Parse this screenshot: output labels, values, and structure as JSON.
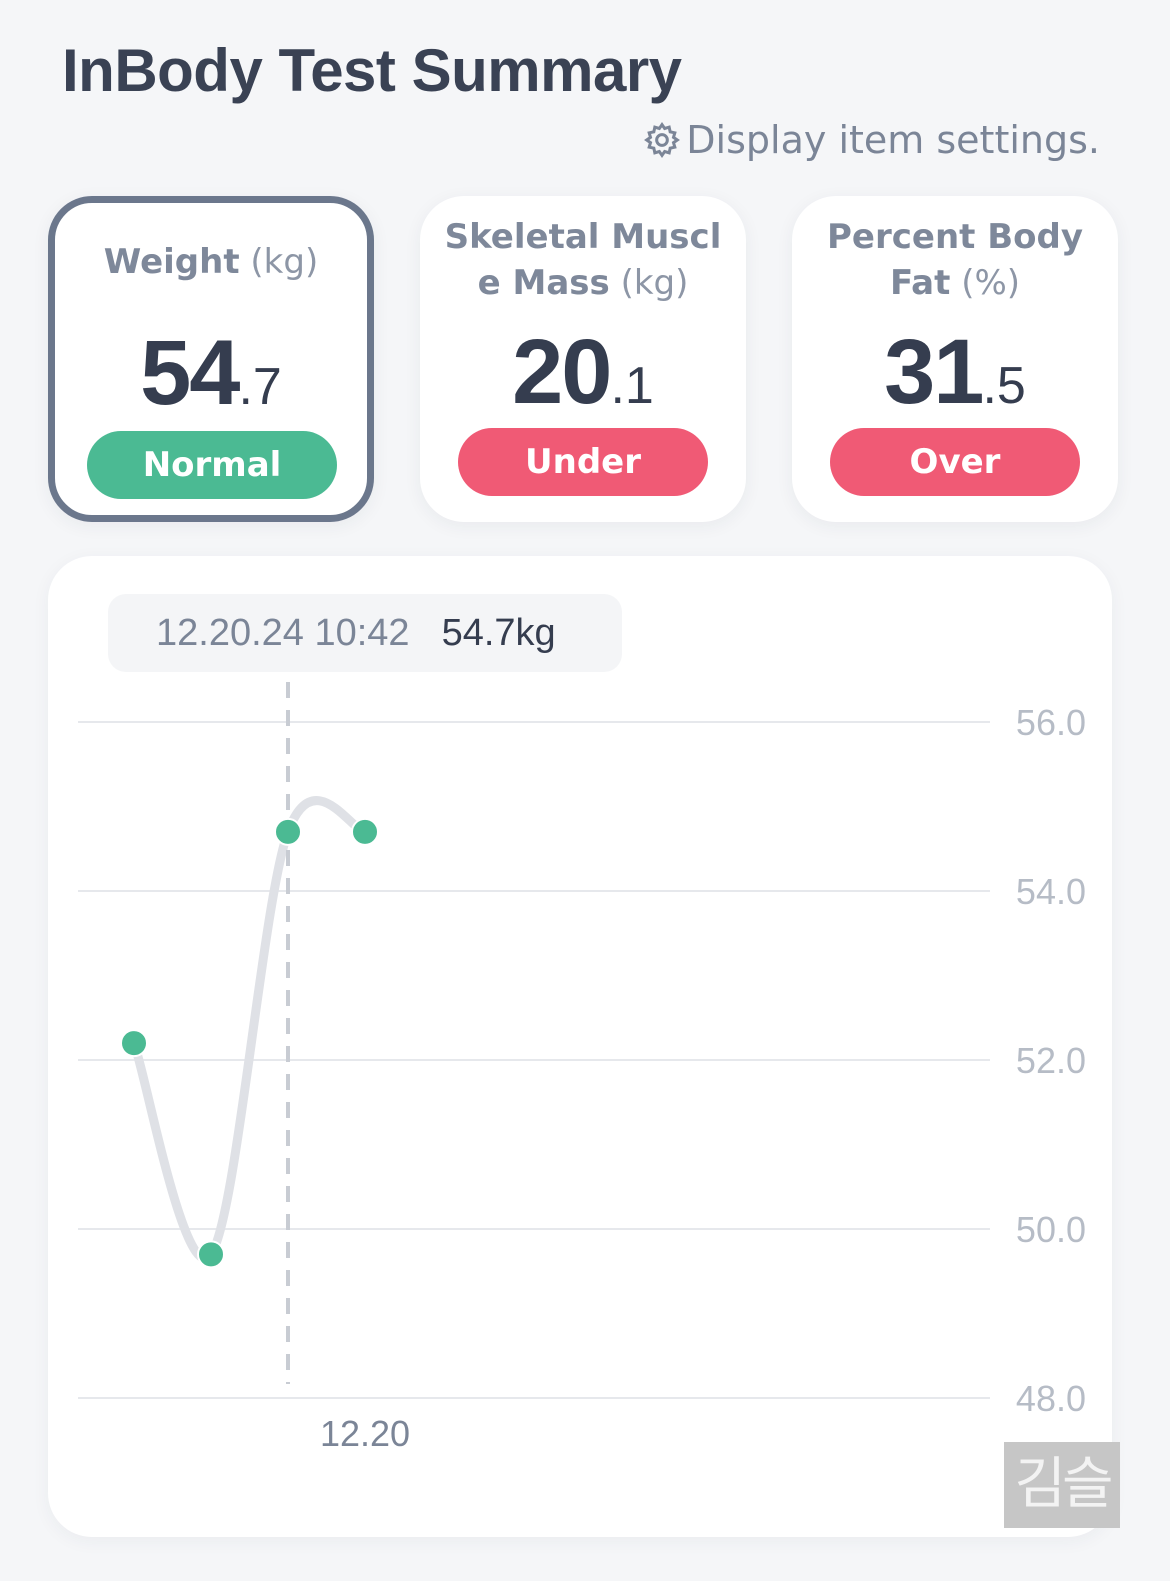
{
  "header": {
    "title": "InBody Test Summary",
    "settings_label": "Display item settings."
  },
  "cards": [
    {
      "label": "Weight",
      "unit": "(kg)",
      "value_int": "54",
      "value_dec": ".7",
      "status": "Normal",
      "status_color": "#4bba93",
      "selected": true
    },
    {
      "label": "Skeletal Muscle Mass",
      "unit": "(kg)",
      "value_int": "20",
      "value_dec": ".1",
      "status": "Under",
      "status_color": "#f05a75",
      "selected": false
    },
    {
      "label": "Percent Body Fat",
      "unit": "(%)",
      "value_int": "31",
      "value_dec": ".5",
      "status": "Over",
      "status_color": "#f05a75",
      "selected": false
    }
  ],
  "tooltip": {
    "date": "12.20.24 10:42",
    "value": "54.7kg"
  },
  "chart_data": {
    "type": "line",
    "series": [
      {
        "values": [
          52.2,
          49.7,
          54.7,
          54.7
        ],
        "color": "#4bba93"
      }
    ],
    "selected_index": 2,
    "x_tick_labels": [
      {
        "index": 3,
        "label": "12.20"
      }
    ],
    "y_ticks": [
      "56.0",
      "54.0",
      "52.0",
      "50.0",
      "48.0"
    ],
    "ylim": [
      48.0,
      56.0
    ],
    "grid": true
  },
  "watermark": "김슬"
}
